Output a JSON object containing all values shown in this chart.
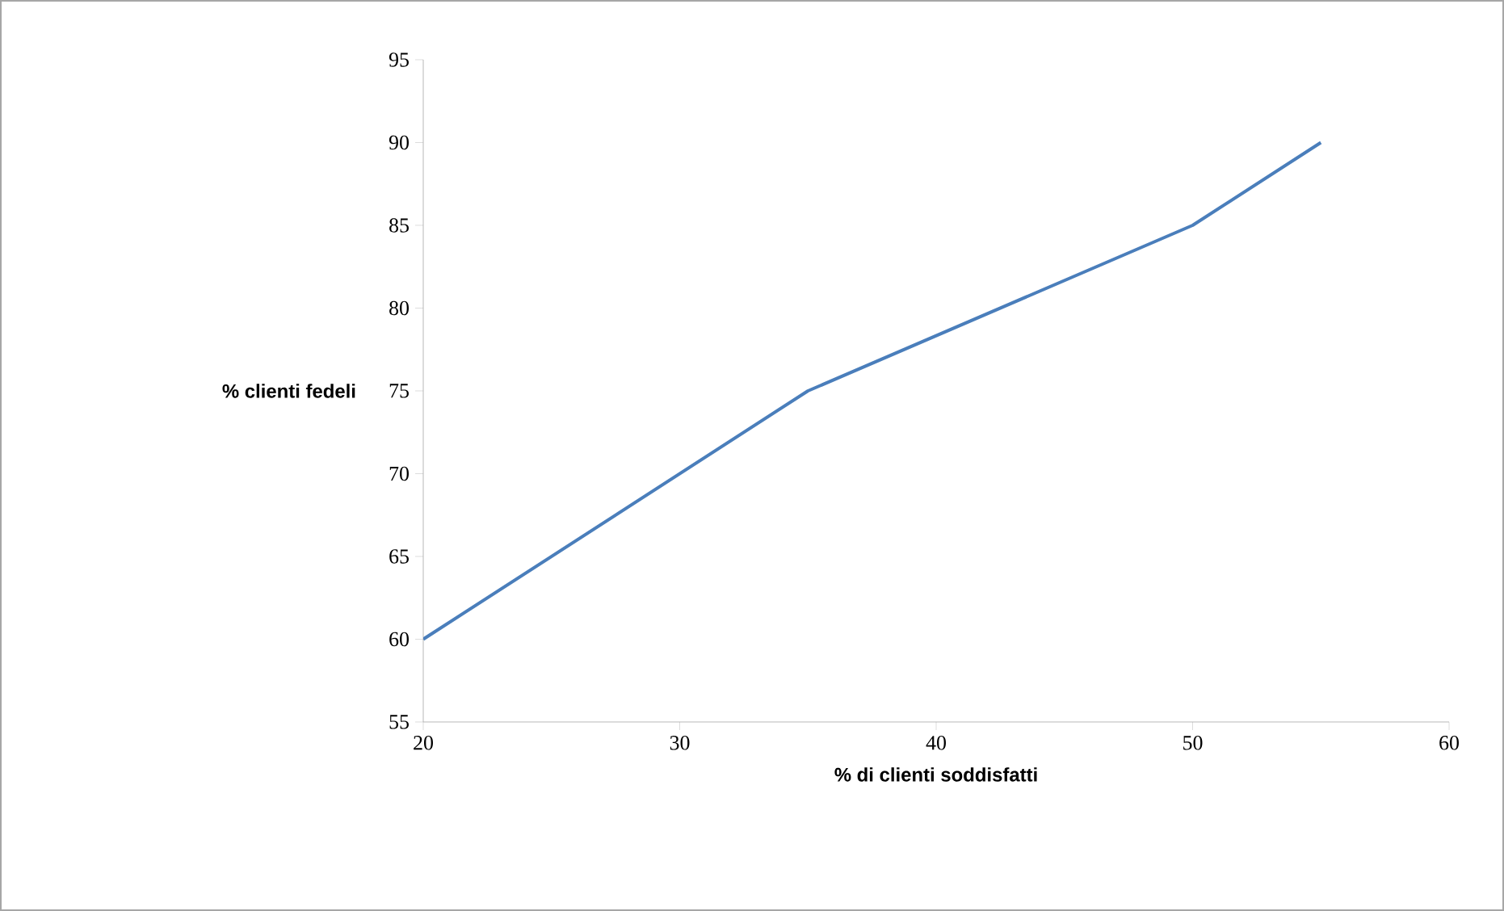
{
  "chart_data": {
    "type": "line",
    "xlabel": "% di clienti soddisfatti",
    "ylabel": "% clienti fedeli",
    "x": [
      20,
      35,
      50,
      55
    ],
    "series": [
      {
        "color": "#4a7ebb",
        "values": [
          60,
          75,
          85,
          90
        ]
      }
    ],
    "xlim": [
      20,
      60
    ],
    "xticks": [
      20,
      30,
      40,
      50,
      60
    ],
    "ylim": [
      55,
      95
    ],
    "yticks": [
      55,
      60,
      65,
      70,
      75,
      80,
      85,
      90,
      95
    ],
    "grid": false,
    "marker": "none",
    "line_style": "solid"
  }
}
